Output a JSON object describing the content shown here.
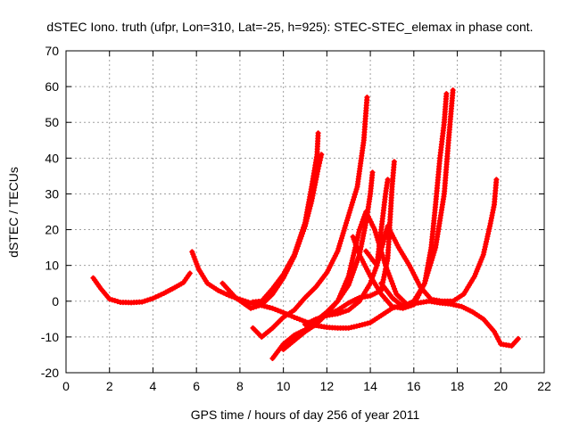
{
  "chart_data": {
    "type": "scatter",
    "title": "dSTEC Iono. truth (ufpr, Lon=310, Lat=-25, h=925): STEC-STEC_elemax in phase cont.",
    "xlabel": "GPS time / hours of day 256 of year 2011",
    "ylabel": "dSTEC  / TECUs",
    "xlim": [
      0,
      22
    ],
    "ylim": [
      -20,
      70
    ],
    "xticks": [
      0,
      2,
      4,
      6,
      8,
      10,
      12,
      14,
      16,
      18,
      20,
      22
    ],
    "yticks": [
      -20,
      -10,
      0,
      10,
      20,
      30,
      40,
      50,
      60,
      70
    ],
    "grid": true,
    "marker": "plus",
    "color": "#ff0000",
    "series": [
      {
        "points": [
          [
            1.25,
            6.5
          ],
          [
            1.6,
            3.5
          ],
          [
            2.0,
            0.6
          ],
          [
            2.5,
            -0.3
          ],
          [
            3.0,
            -0.4
          ],
          [
            3.5,
            -0.2
          ],
          [
            4.0,
            0.8
          ],
          [
            4.5,
            2.2
          ],
          [
            5.0,
            3.8
          ],
          [
            5.4,
            5.2
          ],
          [
            5.7,
            7.8
          ]
        ]
      },
      {
        "points": [
          [
            5.8,
            13.8
          ],
          [
            6.1,
            9.0
          ],
          [
            6.5,
            5.0
          ],
          [
            7.0,
            3.0
          ],
          [
            7.5,
            1.6
          ],
          [
            8.0,
            0.5
          ],
          [
            8.5,
            -0.5
          ],
          [
            9.0,
            -1.2
          ],
          [
            9.5,
            -2.0
          ],
          [
            10.0,
            -3.2
          ],
          [
            10.5,
            -4.5
          ],
          [
            11.0,
            -5.7
          ],
          [
            11.5,
            -6.8
          ],
          [
            12.0,
            -7.3
          ],
          [
            12.5,
            -7.5
          ],
          [
            13.0,
            -7.5
          ],
          [
            13.5,
            -6.8
          ],
          [
            14.0,
            -6.0
          ],
          [
            14.5,
            -4.0
          ],
          [
            15.0,
            -2.0
          ],
          [
            15.5,
            -1.0
          ]
        ]
      },
      {
        "points": [
          [
            7.2,
            5.0
          ],
          [
            7.8,
            1.0
          ],
          [
            8.5,
            -2.0
          ],
          [
            9.0,
            -1.0
          ],
          [
            9.5,
            2.0
          ],
          [
            10.0,
            6.5
          ],
          [
            10.5,
            12.5
          ],
          [
            11.0,
            21.0
          ],
          [
            11.3,
            28.0
          ],
          [
            11.6,
            37.0
          ],
          [
            11.75,
            41.0
          ]
        ]
      },
      {
        "points": [
          [
            8.6,
            -0.2
          ],
          [
            9.0,
            0.0
          ],
          [
            9.5,
            3.5
          ],
          [
            10.0,
            7.5
          ],
          [
            10.5,
            13.0
          ],
          [
            11.0,
            22.0
          ],
          [
            11.3,
            32.0
          ],
          [
            11.55,
            41.0
          ],
          [
            11.6,
            47.0
          ]
        ]
      },
      {
        "points": [
          [
            8.6,
            -7.5
          ],
          [
            9.0,
            -10.0
          ],
          [
            9.5,
            -7.5
          ],
          [
            10.0,
            -4.5
          ],
          [
            10.5,
            -2.5
          ],
          [
            11.0,
            1.0
          ],
          [
            11.5,
            4.0
          ],
          [
            12.0,
            8.0
          ],
          [
            12.5,
            14.0
          ],
          [
            13.0,
            24.0
          ],
          [
            13.4,
            32.0
          ],
          [
            13.7,
            45.0
          ],
          [
            13.85,
            57.0
          ]
        ]
      },
      {
        "points": [
          [
            9.5,
            -16.0
          ],
          [
            10.0,
            -12.0
          ],
          [
            10.5,
            -9.5
          ],
          [
            11.0,
            -8.0
          ],
          [
            11.5,
            -5.5
          ],
          [
            12.0,
            -3.0
          ],
          [
            12.5,
            0.0
          ],
          [
            13.0,
            4.5
          ],
          [
            13.5,
            13.0
          ],
          [
            13.8,
            22.0
          ],
          [
            14.0,
            30.0
          ],
          [
            14.1,
            36.0
          ]
        ]
      },
      {
        "points": [
          [
            10.0,
            -13.5
          ],
          [
            10.5,
            -11.0
          ],
          [
            11.0,
            -8.5
          ],
          [
            11.5,
            -6.5
          ],
          [
            12.0,
            -3.5
          ],
          [
            12.5,
            0.0
          ],
          [
            13.0,
            7.0
          ],
          [
            13.5,
            20.0
          ],
          [
            13.8,
            25.0
          ],
          [
            14.2,
            20.0
          ],
          [
            14.7,
            10.0
          ],
          [
            15.2,
            2.0
          ],
          [
            15.7,
            -1.0
          ],
          [
            16.2,
            -0.5
          ],
          [
            16.7,
            0.0
          ],
          [
            17.2,
            -0.5
          ],
          [
            17.7,
            -0.8
          ],
          [
            18.2,
            -1.5
          ],
          [
            18.7,
            -3.0
          ],
          [
            19.2,
            -5.0
          ],
          [
            19.7,
            -8.5
          ],
          [
            20.0,
            -12.0
          ],
          [
            20.5,
            -12.5
          ],
          [
            20.8,
            -10.5
          ]
        ]
      },
      {
        "points": [
          [
            11.0,
            -6.5
          ],
          [
            11.5,
            -5.0
          ],
          [
            12.0,
            -4.0
          ],
          [
            12.5,
            -3.5
          ],
          [
            13.0,
            -2.5
          ],
          [
            13.5,
            0.0
          ],
          [
            14.0,
            5.0
          ],
          [
            14.3,
            10.0
          ],
          [
            14.5,
            20.0
          ],
          [
            14.7,
            30.0
          ],
          [
            14.8,
            34.0
          ]
        ]
      },
      {
        "points": [
          [
            12.0,
            -4.0
          ],
          [
            12.5,
            -2.5
          ],
          [
            13.0,
            -0.5
          ],
          [
            13.5,
            1.0
          ],
          [
            14.0,
            1.5
          ],
          [
            14.5,
            3.0
          ],
          [
            14.8,
            12.0
          ],
          [
            14.9,
            22.0
          ],
          [
            15.0,
            32.0
          ],
          [
            15.1,
            39.0
          ]
        ]
      },
      {
        "points": [
          [
            13.2,
            18.0
          ],
          [
            13.5,
            13.0
          ],
          [
            14.0,
            7.0
          ],
          [
            14.5,
            2.0
          ],
          [
            15.0,
            -1.5
          ],
          [
            15.5,
            -2.0
          ],
          [
            16.0,
            -1.0
          ],
          [
            16.5,
            5.0
          ],
          [
            16.8,
            15.0
          ],
          [
            17.0,
            27.0
          ],
          [
            17.2,
            40.0
          ],
          [
            17.4,
            50.0
          ],
          [
            17.5,
            58.0
          ]
        ]
      },
      {
        "points": [
          [
            14.5,
            5.0
          ],
          [
            15.0,
            1.0
          ],
          [
            15.5,
            -1.5
          ],
          [
            16.0,
            0.0
          ],
          [
            16.5,
            5.0
          ],
          [
            17.0,
            15.0
          ],
          [
            17.4,
            30.0
          ],
          [
            17.6,
            45.0
          ],
          [
            17.8,
            59.0
          ]
        ]
      },
      {
        "points": [
          [
            13.8,
            14.0
          ],
          [
            14.3,
            10.0
          ],
          [
            14.8,
            21.0
          ],
          [
            15.3,
            15.0
          ],
          [
            15.8,
            10.0
          ],
          [
            16.3,
            4.0
          ],
          [
            16.8,
            0.5
          ],
          [
            17.3,
            0.0
          ],
          [
            17.8,
            0.0
          ],
          [
            18.3,
            2.0
          ],
          [
            18.8,
            7.0
          ],
          [
            19.2,
            13.0
          ],
          [
            19.5,
            21.0
          ],
          [
            19.7,
            27.0
          ],
          [
            19.8,
            34.0
          ]
        ]
      }
    ]
  }
}
